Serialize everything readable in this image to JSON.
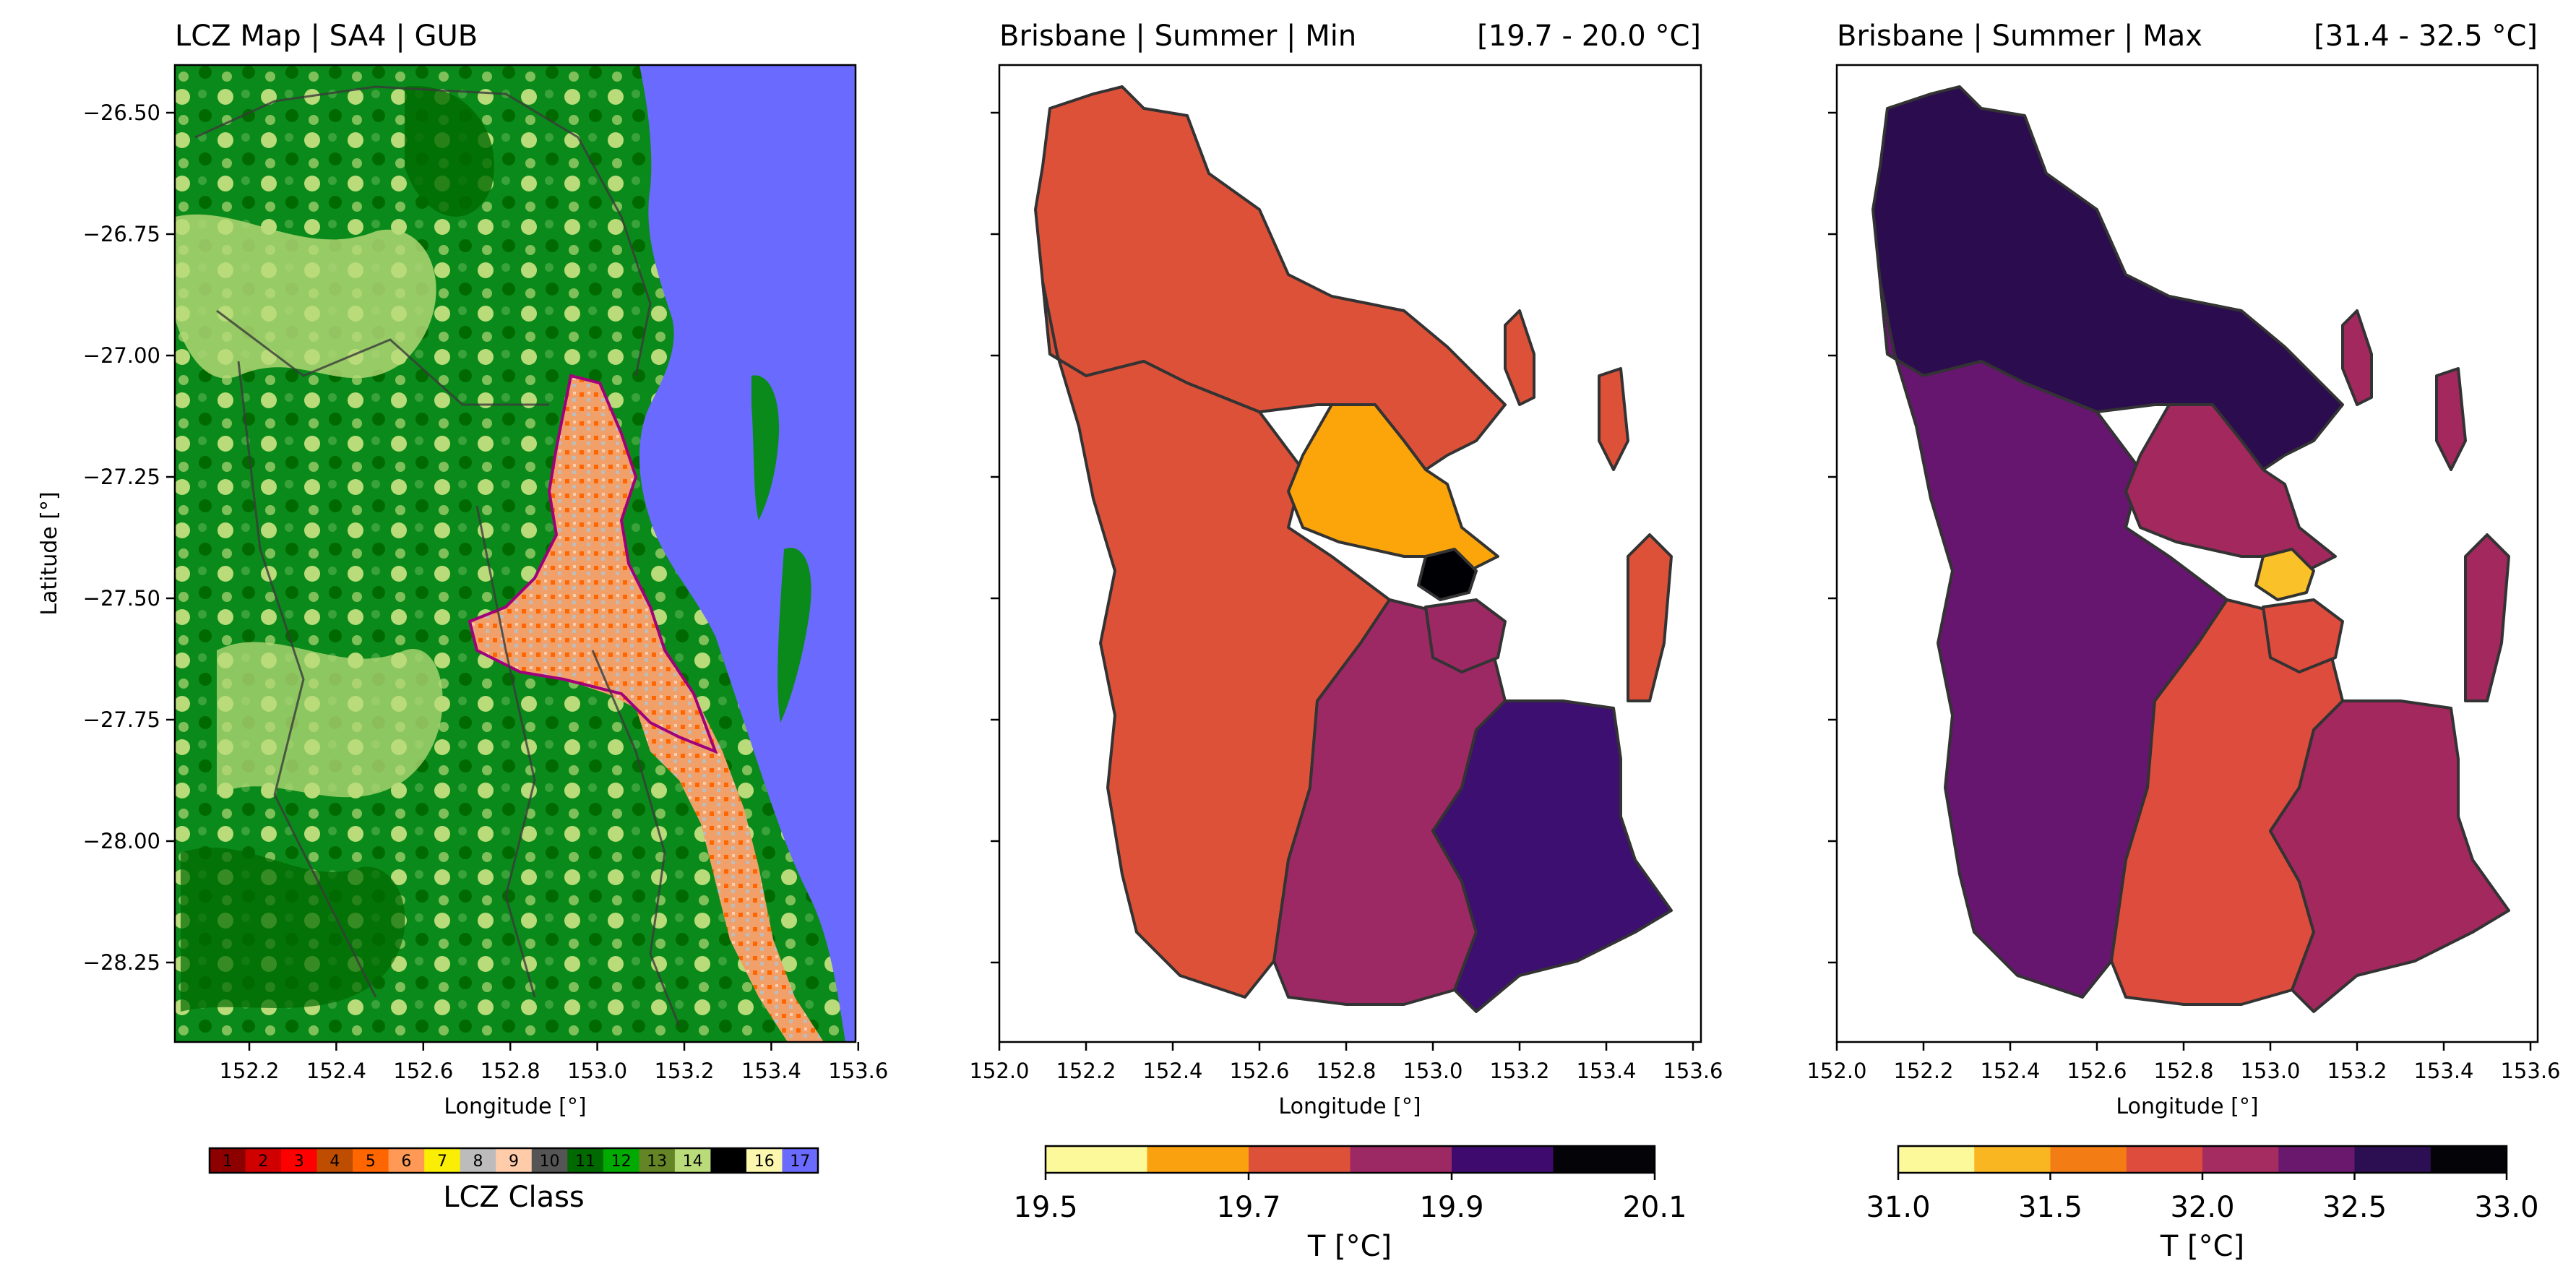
{
  "panel1": {
    "title": "LCZ Map | SA4 | GUB",
    "xlabel": "Longitude [°]",
    "ylabel": "Latitude [°]",
    "xticks": [
      "152.2",
      "152.4",
      "152.6",
      "152.8",
      "153.0",
      "153.2",
      "153.4",
      "153.6"
    ],
    "yticks": [
      "−26.50",
      "−26.75",
      "−27.00",
      "−27.25",
      "−27.50",
      "−27.75",
      "−28.00",
      "−28.25"
    ],
    "legend_label": "LCZ Class",
    "classes": [
      {
        "label": "1",
        "color": "#8c0000"
      },
      {
        "label": "2",
        "color": "#d10000"
      },
      {
        "label": "3",
        "color": "#ff0000"
      },
      {
        "label": "4",
        "color": "#bf4d00"
      },
      {
        "label": "5",
        "color": "#ff6600"
      },
      {
        "label": "6",
        "color": "#ff9955"
      },
      {
        "label": "7",
        "color": "#faee05"
      },
      {
        "label": "8",
        "color": "#bcbcbc"
      },
      {
        "label": "9",
        "color": "#ffccaa"
      },
      {
        "label": "10",
        "color": "#555555"
      },
      {
        "label": "11",
        "color": "#006a00"
      },
      {
        "label": "12",
        "color": "#00aa00"
      },
      {
        "label": "13",
        "color": "#648525"
      },
      {
        "label": "14",
        "color": "#b9db79"
      },
      {
        "label": "",
        "color": "#000000"
      },
      {
        "label": "16",
        "color": "#fbf7ae"
      },
      {
        "label": "17",
        "color": "#6a6afe"
      }
    ]
  },
  "panel2": {
    "title_left": "Brisbane | Summer | Min",
    "title_right": "[19.7 - 20.0 °C]",
    "xlabel": "Longitude [°]",
    "xticks": [
      "152.0",
      "152.2",
      "152.4",
      "152.6",
      "152.8",
      "153.0",
      "153.2",
      "153.4",
      "153.6"
    ],
    "colorbar_label": "T [°C]",
    "colorbar_ticks": [
      "19.5",
      "19.7",
      "19.9",
      "20.1"
    ],
    "colorbar_colors": [
      "#fcf99b",
      "#f9a10e",
      "#de5139",
      "#9c2964",
      "#3f0a6e",
      "#030308"
    ],
    "regions": {
      "north": "#de5139",
      "west": "#de5139",
      "central": "#fca50a",
      "inner": "#000004",
      "south_mid": "#9c2964",
      "south_east": "#3c0f70",
      "islands": "#de5139"
    }
  },
  "panel3": {
    "title_left": "Brisbane | Summer | Max",
    "title_right": "[31.4 - 32.5 °C]",
    "xlabel": "Longitude [°]",
    "xticks": [
      "152.0",
      "152.2",
      "152.4",
      "152.6",
      "152.8",
      "153.0",
      "153.2",
      "153.4",
      "153.6"
    ],
    "colorbar_label": "T [°C]",
    "colorbar_ticks": [
      "31.0",
      "31.5",
      "32.0",
      "32.5",
      "33.0"
    ],
    "colorbar_colors": [
      "#fcf99b",
      "#f9b621",
      "#f37d14",
      "#de4c3d",
      "#a52c60",
      "#6a176e",
      "#2c0f52",
      "#030308"
    ],
    "regions": {
      "north": "#2a0c4f",
      "west": "#66166e",
      "central": "#a2285e",
      "inner": "#fac228",
      "south_mid": "#de4c3d",
      "south_east": "#a2285e",
      "islands": "#a2285e"
    }
  }
}
